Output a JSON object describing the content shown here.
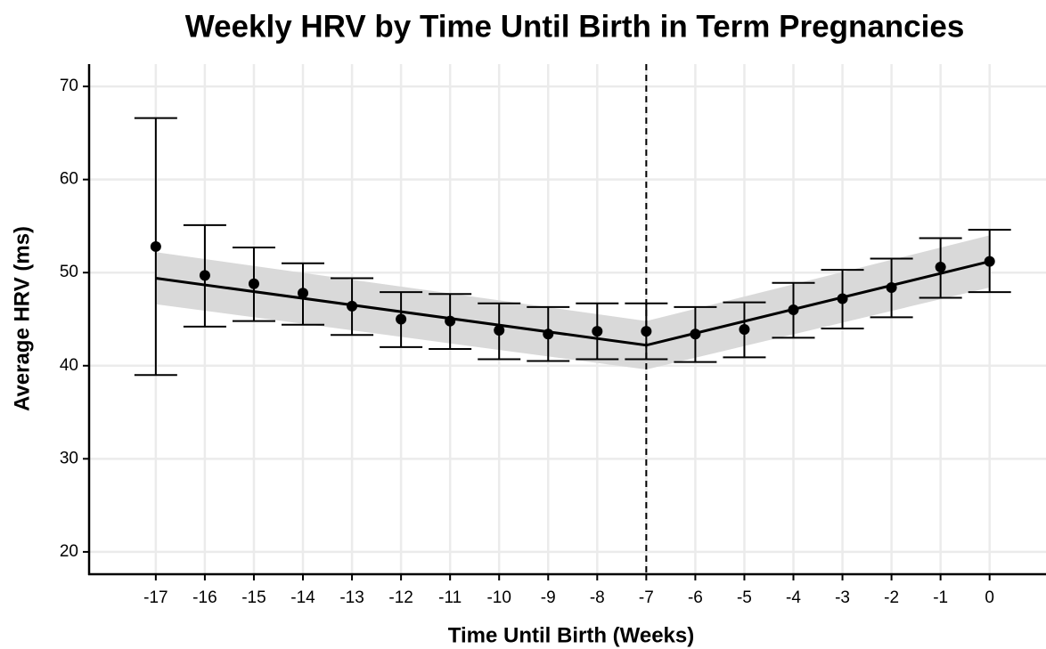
{
  "chart_data": {
    "type": "errorbar",
    "title": "Weekly HRV by Time Until Birth in Term Pregnancies",
    "x_label": "Time Until Birth (Weeks)",
    "y_label": "Average HRV (ms)",
    "x": [
      -17,
      -16,
      -15,
      -14,
      -13,
      -12,
      -11,
      -10,
      -9,
      -8,
      -7,
      -6,
      -5,
      -4,
      -3,
      -2,
      -1,
      0
    ],
    "values": [
      52.8,
      49.7,
      48.8,
      47.8,
      46.4,
      45.0,
      44.8,
      43.8,
      43.4,
      43.7,
      43.7,
      43.4,
      43.9,
      46.0,
      47.2,
      48.4,
      50.6,
      51.2
    ],
    "lower": [
      39.0,
      44.2,
      44.8,
      44.4,
      43.3,
      42.0,
      41.8,
      40.7,
      40.5,
      40.7,
      40.7,
      40.4,
      40.9,
      43.0,
      44.0,
      45.2,
      47.3,
      47.9
    ],
    "upper": [
      66.6,
      55.1,
      52.7,
      51.0,
      49.4,
      47.9,
      47.7,
      46.7,
      46.3,
      46.7,
      46.7,
      46.3,
      46.8,
      48.9,
      50.3,
      51.5,
      53.7,
      54.6
    ],
    "color": "#000000",
    "fit": {
      "x": [
        -17,
        -7,
        0
      ],
      "values": [
        49.4,
        42.2,
        51.2
      ],
      "lower": [
        46.6,
        39.6,
        48.4
      ],
      "upper": [
        52.2,
        44.8,
        54.0
      ],
      "color": "#000000",
      "band_color": "#d9d9d9"
    },
    "vline": -7,
    "xlim": [
      -18.36,
      1.15
    ],
    "ylim": [
      17.6,
      72.4
    ],
    "xticks": [
      -17,
      -16,
      -15,
      -14,
      -13,
      -12,
      -11,
      -10,
      -9,
      -8,
      -7,
      -6,
      -5,
      -4,
      -3,
      -2,
      -1,
      0
    ],
    "yticks": [
      20,
      30,
      40,
      50,
      60,
      70
    ],
    "grid": true
  }
}
